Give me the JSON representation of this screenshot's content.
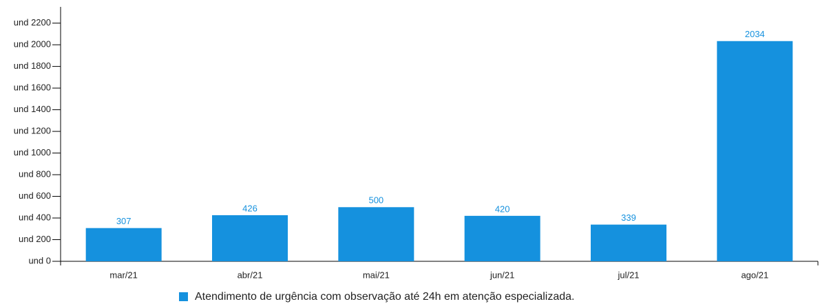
{
  "chart_data": {
    "type": "bar",
    "categories": [
      "mar/21",
      "abr/21",
      "mai/21",
      "jun/21",
      "jul/21",
      "ago/21"
    ],
    "series": [
      {
        "name": "Atendimento de urgência com observação até 24h em atenção especializada.",
        "color": "#1591de",
        "values": [
          307,
          426,
          500,
          420,
          339,
          2034
        ]
      }
    ],
    "ylim": [
      0,
      2350
    ],
    "yticks": [
      {
        "value": 0,
        "label": "und 0"
      },
      {
        "value": 200,
        "label": "und 200"
      },
      {
        "value": 400,
        "label": "und 400"
      },
      {
        "value": 600,
        "label": "und 600"
      },
      {
        "value": 800,
        "label": "und 800"
      },
      {
        "value": 1000,
        "label": "und 1000"
      },
      {
        "value": 1200,
        "label": "und 1200"
      },
      {
        "value": 1400,
        "label": "und 1400"
      },
      {
        "value": 1600,
        "label": "und 1600"
      },
      {
        "value": 1800,
        "label": "und 1800"
      },
      {
        "value": 2000,
        "label": "und 2000"
      },
      {
        "value": 2200,
        "label": "und 2200"
      }
    ],
    "grid": false,
    "legend": "bottom"
  }
}
